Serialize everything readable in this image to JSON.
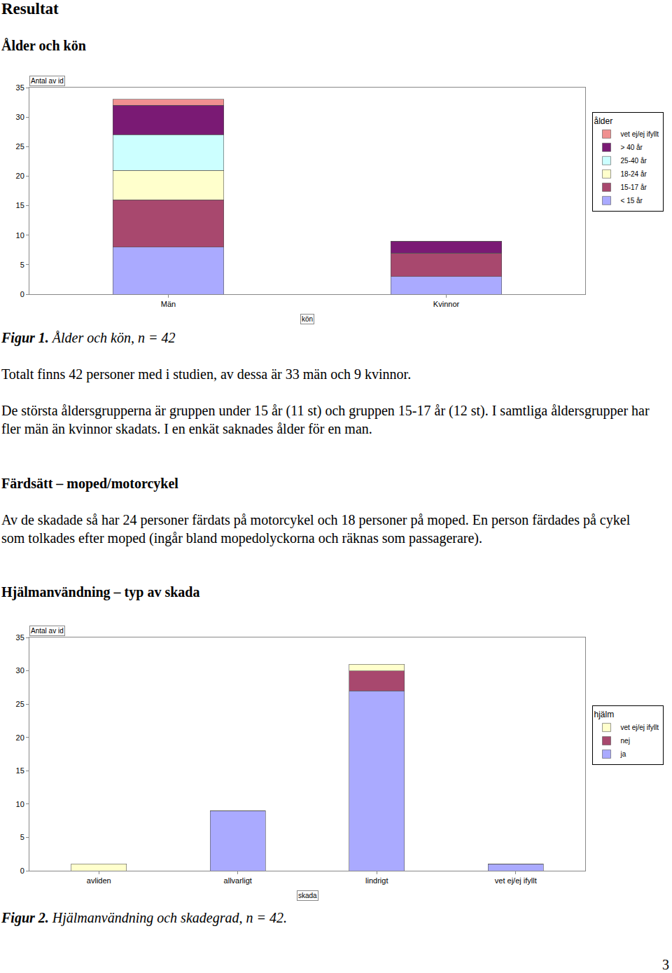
{
  "heading": "Resultat",
  "sections": [
    {
      "heading": "Ålder och kön",
      "figure": {
        "label": "Figur 1.",
        "caption": "Ålder och kön, n = 42"
      },
      "paragraphs": [
        "Totalt finns 42 personer med i studien, av dessa är 33 män och 9 kvinnor.",
        "De största åldersgrupperna är gruppen under 15 år (11 st) och gruppen 15-17 år (12 st). I samtliga åldersgrupper har fler män än kvinnor skadats. I en enkät saknades ålder för en man."
      ]
    },
    {
      "heading": "Färdsätt – moped/motorcykel",
      "paragraphs": [
        "Av de skadade så har 24 personer färdats på motorcykel och 18 personer på moped. En person färdades på cykel som tolkades efter moped (ingår bland mopedolyckorna och räknas som passagerare)."
      ]
    },
    {
      "heading": "Hjälmanvändning – typ av skada",
      "figure": {
        "label": "Figur 2.",
        "caption": "Hjälmanvändning och skadegrad, n = 42."
      }
    }
  ],
  "page_number": "3",
  "chart_data": [
    {
      "type": "bar",
      "stacked": true,
      "ylabel": "Antal av id",
      "xlabel": "kön",
      "legend_title": "ålder",
      "legend": "right",
      "grid": false,
      "categories": [
        "Män",
        "Kvinnor"
      ],
      "ylim": [
        0,
        35
      ],
      "yticks": [
        0,
        5,
        10,
        15,
        20,
        25,
        30,
        35
      ],
      "series": [
        {
          "name": "< 15 år",
          "color": "#aaaaff",
          "values": [
            8,
            3
          ]
        },
        {
          "name": "15-17 år",
          "color": "#a8486e",
          "values": [
            8,
            4
          ]
        },
        {
          "name": "18-24 år",
          "color": "#ffffcc",
          "values": [
            5,
            0
          ]
        },
        {
          "name": "25-40 år",
          "color": "#ccffff",
          "values": [
            6,
            0
          ]
        },
        {
          "name": "> 40 år",
          "color": "#7a1a74",
          "values": [
            5,
            2
          ]
        },
        {
          "name": "vet ej/ej ifyllt",
          "color": "#f09090",
          "values": [
            1,
            0
          ]
        }
      ]
    },
    {
      "type": "bar",
      "stacked": true,
      "ylabel": "Antal av id",
      "xlabel": "skada",
      "legend_title": "hjälm",
      "legend": "right",
      "grid": false,
      "categories": [
        "avliden",
        "allvarligt",
        "lindrigt",
        "vet ej/ej ifyllt"
      ],
      "ylim": [
        0,
        35
      ],
      "yticks": [
        0,
        5,
        10,
        15,
        20,
        25,
        30,
        35
      ],
      "series": [
        {
          "name": "ja",
          "color": "#aaaaff",
          "values": [
            0,
            9,
            27,
            1
          ]
        },
        {
          "name": "nej",
          "color": "#a8486e",
          "values": [
            0,
            0,
            3,
            0
          ]
        },
        {
          "name": "vet ej/ej ifyllt",
          "color": "#ffffcc",
          "values": [
            1,
            0,
            1,
            0
          ]
        }
      ]
    }
  ]
}
